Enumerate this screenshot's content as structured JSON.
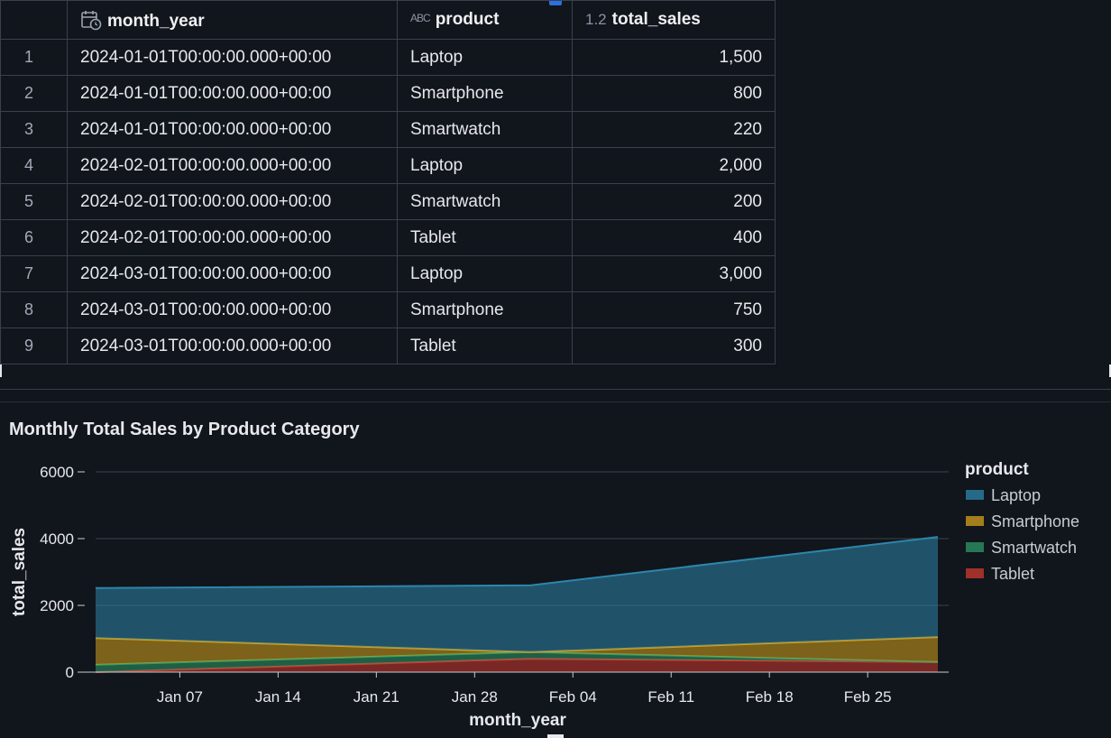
{
  "table": {
    "columns": [
      {
        "name": "month_year",
        "type_glyph": "calendar-clock-icon"
      },
      {
        "name": "product",
        "type_glyph_text": "ABC"
      },
      {
        "name": "total_sales",
        "type_glyph_text": "1.2"
      }
    ],
    "rows": [
      {
        "idx": "1",
        "month_year": "2024-01-01T00:00:00.000+00:00",
        "product": "Laptop",
        "total_sales": "1,500"
      },
      {
        "idx": "2",
        "month_year": "2024-01-01T00:00:00.000+00:00",
        "product": "Smartphone",
        "total_sales": "800"
      },
      {
        "idx": "3",
        "month_year": "2024-01-01T00:00:00.000+00:00",
        "product": "Smartwatch",
        "total_sales": "220"
      },
      {
        "idx": "4",
        "month_year": "2024-02-01T00:00:00.000+00:00",
        "product": "Laptop",
        "total_sales": "2,000"
      },
      {
        "idx": "5",
        "month_year": "2024-02-01T00:00:00.000+00:00",
        "product": "Smartwatch",
        "total_sales": "200"
      },
      {
        "idx": "6",
        "month_year": "2024-02-01T00:00:00.000+00:00",
        "product": "Tablet",
        "total_sales": "400"
      },
      {
        "idx": "7",
        "month_year": "2024-03-01T00:00:00.000+00:00",
        "product": "Laptop",
        "total_sales": "3,000"
      },
      {
        "idx": "8",
        "month_year": "2024-03-01T00:00:00.000+00:00",
        "product": "Smartphone",
        "total_sales": "750"
      },
      {
        "idx": "9",
        "month_year": "2024-03-01T00:00:00.000+00:00",
        "product": "Tablet",
        "total_sales": "300"
      }
    ]
  },
  "chart_data": {
    "type": "area",
    "stacked": true,
    "title": "Monthly Total Sales by Product Category",
    "xlabel": "month_year",
    "ylabel": "total_sales",
    "x": [
      "2024-01-01",
      "2024-02-01",
      "2024-03-01"
    ],
    "x_tick_labels": [
      "Jan 07",
      "Jan 14",
      "Jan 21",
      "Jan 28",
      "Feb 04",
      "Feb 11",
      "Feb 18",
      "Feb 25"
    ],
    "x_tick_dates": [
      "2024-01-07",
      "2024-01-14",
      "2024-01-21",
      "2024-01-28",
      "2024-02-04",
      "2024-02-11",
      "2024-02-18",
      "2024-02-25"
    ],
    "ylim": [
      0,
      6000
    ],
    "y_ticks": [
      0,
      2000,
      4000,
      6000
    ],
    "grid": true,
    "legend_title": "product",
    "legend_position": "right",
    "series": [
      {
        "name": "Tablet",
        "color": "#d0392f",
        "values": [
          0,
          400,
          300
        ]
      },
      {
        "name": "Smartwatch",
        "color": "#2e9a68",
        "values": [
          220,
          200,
          0
        ]
      },
      {
        "name": "Smartphone",
        "color": "#d6a21c",
        "values": [
          800,
          0,
          750
        ]
      },
      {
        "name": "Laptop",
        "color": "#2d86ac",
        "values": [
          1500,
          2000,
          3000
        ]
      }
    ],
    "legend_order": [
      "Laptop",
      "Smartphone",
      "Smartwatch",
      "Tablet"
    ]
  }
}
